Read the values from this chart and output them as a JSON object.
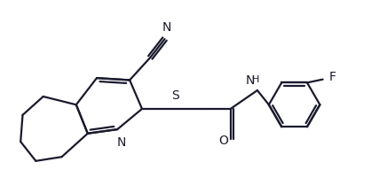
{
  "background_color": "#ffffff",
  "line_color": "#1a1a2e",
  "bond_width": 1.6,
  "figsize": [
    4.36,
    2.18
  ],
  "dpi": 100,
  "xlim": [
    0.0,
    8.5
  ],
  "ylim": [
    -0.5,
    4.2
  ]
}
